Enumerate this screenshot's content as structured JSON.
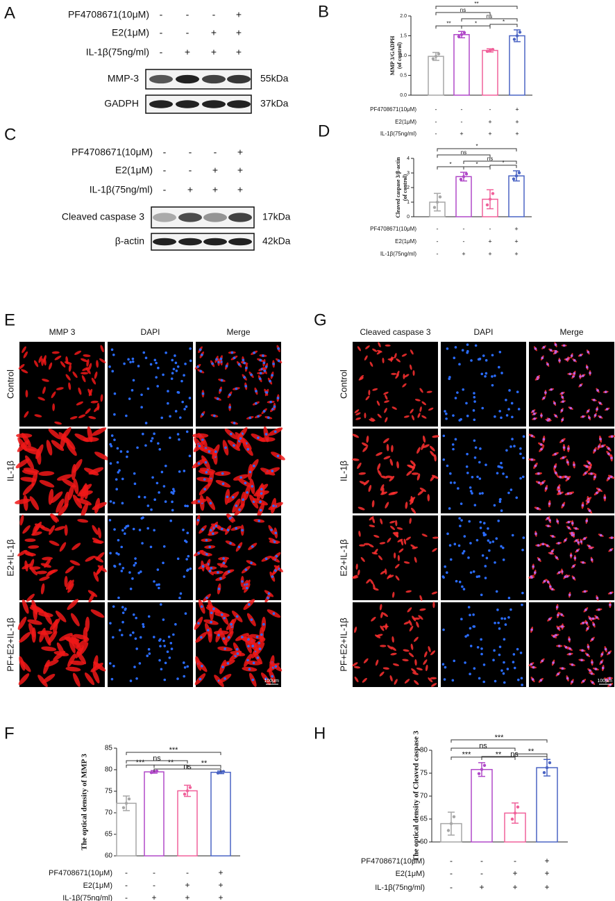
{
  "blots": [
    {
      "panel": "A",
      "treatments": [
        {
          "label": "PF4708671(10μM)",
          "signs": [
            "-",
            "-",
            "-",
            "+"
          ]
        },
        {
          "label": "E2(1μM)",
          "signs": [
            "-",
            "-",
            "+",
            "+"
          ]
        },
        {
          "label": "IL-1β(75ng/ml)",
          "signs": [
            "-",
            "+",
            "+",
            "+"
          ]
        }
      ],
      "bands": [
        {
          "label": "MMP-3",
          "size": "55kDa"
        },
        {
          "label": "GADPH",
          "size": "37kDa"
        }
      ]
    },
    {
      "panel": "C",
      "treatments": [
        {
          "label": "PF4708671(10μM)",
          "signs": [
            "-",
            "-",
            "-",
            "+"
          ]
        },
        {
          "label": "E2(1μM)",
          "signs": [
            "-",
            "-",
            "+",
            "+"
          ]
        },
        {
          "label": "IL-1β(75ng/ml)",
          "signs": [
            "-",
            "+",
            "+",
            "+"
          ]
        }
      ],
      "bands": [
        {
          "label": "Cleaved caspase 3",
          "size": "17kDa"
        },
        {
          "label": "β-actin",
          "size": "42kDa"
        }
      ]
    }
  ],
  "micrographs": [
    {
      "panel": "E",
      "columns": [
        "MMP 3",
        "DAPI",
        "Merge"
      ],
      "rows": [
        "Control",
        "IL-1β",
        "E2+IL-1β",
        "PF+E2+IL-1β"
      ],
      "scale": "100μm"
    },
    {
      "panel": "G",
      "columns": [
        "Cleaved caspase 3",
        "DAPI",
        "Merge"
      ],
      "rows": [
        "Control",
        "IL-1β",
        "E2+IL-1β",
        "PF+E2+IL-1β"
      ],
      "scale": "100μm"
    }
  ],
  "chart_data": [
    {
      "type": "bar",
      "panel": "B",
      "ylabel": [
        "MMP 3/GADPH",
        "(of control)"
      ],
      "categories": [
        null,
        null,
        null,
        null
      ],
      "values": [
        0.98,
        1.53,
        1.13,
        1.5
      ],
      "errors": [
        0.1,
        0.08,
        0.04,
        0.15
      ],
      "colors": [
        "#a6a6a6",
        "#b048c8",
        "#f0609a",
        "#4a64c4"
      ],
      "ylim": [
        0,
        2
      ],
      "yticks": [
        {
          "value": 0,
          "label": "0.0"
        },
        {
          "value": 0.5,
          "label": "0.5"
        },
        {
          "value": 1,
          "label": "1.0"
        },
        {
          "value": 1.5,
          "label": "1.5"
        },
        {
          "value": 2,
          "label": "2.0"
        }
      ],
      "brackets": [
        {
          "pair": [
            0,
            3
          ],
          "label": "**"
        },
        {
          "pair": [
            0,
            2
          ],
          "label": "ns"
        },
        {
          "pair": [
            1,
            3
          ],
          "label": "ns"
        },
        {
          "pair": [
            0,
            1
          ],
          "label": "**"
        },
        {
          "pair": [
            1,
            2
          ],
          "label": "*"
        },
        {
          "pair": [
            2,
            3
          ],
          "label": "*"
        }
      ],
      "treatments": [
        {
          "label": "PF4708671(10μM)",
          "signs": [
            "-",
            "-",
            "-",
            "+"
          ]
        },
        {
          "label": "E2(1μM)",
          "signs": [
            "-",
            "-",
            "+",
            "+"
          ]
        },
        {
          "label": "IL-1β(75ng/ml)",
          "signs": [
            "-",
            "+",
            "+",
            "+"
          ]
        }
      ]
    },
    {
      "type": "bar",
      "panel": "D",
      "ylabel": [
        "Cleaved caspase 3/β-actin",
        "(of control)"
      ],
      "categories": [
        null,
        null,
        null,
        null
      ],
      "values": [
        1.0,
        2.75,
        1.2,
        2.8
      ],
      "errors": [
        0.6,
        0.3,
        0.65,
        0.35
      ],
      "colors": [
        "#a6a6a6",
        "#b048c8",
        "#f0609a",
        "#4a64c4"
      ],
      "ylim": [
        0,
        4
      ],
      "yticks": [
        0,
        1,
        2,
        3,
        4
      ],
      "brackets": [
        {
          "pair": [
            0,
            3
          ],
          "label": "*"
        },
        {
          "pair": [
            0,
            2
          ],
          "label": "ns"
        },
        {
          "pair": [
            1,
            3
          ],
          "label": "ns"
        },
        {
          "pair": [
            0,
            1
          ],
          "label": "*"
        },
        {
          "pair": [
            1,
            2
          ],
          "label": "*"
        },
        {
          "pair": [
            2,
            3
          ],
          "label": "*"
        }
      ],
      "treatments": [
        {
          "label": "PF4708671(10μM)",
          "signs": [
            "-",
            "-",
            "-",
            "+"
          ]
        },
        {
          "label": "E2(1μM)",
          "signs": [
            "-",
            "-",
            "+",
            "+"
          ]
        },
        {
          "label": "IL-1β(75ng/ml)",
          "signs": [
            "-",
            "+",
            "+",
            "+"
          ]
        }
      ]
    },
    {
      "type": "bar",
      "panel": "F",
      "ylabel": [
        "The optical density of MMP 3"
      ],
      "categories": [
        null,
        null,
        null,
        null
      ],
      "values": [
        72.2,
        79.5,
        75.1,
        79.4
      ],
      "errors": [
        1.7,
        0.3,
        1.3,
        0.3
      ],
      "colors": [
        "#a6a6a6",
        "#b048c8",
        "#f0609a",
        "#4a64c4"
      ],
      "ylim": [
        60,
        85
      ],
      "yticks": [
        60,
        65,
        70,
        75,
        80,
        85
      ],
      "brackets": [
        {
          "pair": [
            0,
            3
          ],
          "label": "***"
        },
        {
          "pair": [
            0,
            2
          ],
          "label": "ns"
        },
        {
          "pair": [
            1,
            3
          ],
          "label": "ns"
        },
        {
          "pair": [
            0,
            1
          ],
          "label": "***"
        },
        {
          "pair": [
            1,
            2
          ],
          "label": "**"
        },
        {
          "pair": [
            2,
            3
          ],
          "label": "**"
        }
      ],
      "treatments": [
        {
          "label": "PF4708671(10μM)",
          "signs": [
            "-",
            "-",
            "-",
            "+"
          ]
        },
        {
          "label": "E2(1μM)",
          "signs": [
            "-",
            "-",
            "+",
            "+"
          ]
        },
        {
          "label": "IL-1β(75ng/ml)",
          "signs": [
            "-",
            "+",
            "+",
            "+"
          ]
        }
      ]
    },
    {
      "type": "bar",
      "panel": "H",
      "ylabel": [
        "The optical density of Cleaved caspase 3"
      ],
      "categories": [
        null,
        null,
        null,
        null
      ],
      "values": [
        64,
        75.8,
        66.3,
        76.2
      ],
      "errors": [
        2.5,
        1.5,
        2.2,
        1.8
      ],
      "colors": [
        "#a6a6a6",
        "#b048c8",
        "#f0609a",
        "#4a64c4"
      ],
      "ylim": [
        60,
        80
      ],
      "yticks": [
        60,
        65,
        70,
        75,
        80
      ],
      "brackets": [
        {
          "pair": [
            0,
            3
          ],
          "label": "***"
        },
        {
          "pair": [
            0,
            2
          ],
          "label": "ns"
        },
        {
          "pair": [
            1,
            3
          ],
          "label": "ns"
        },
        {
          "pair": [
            0,
            1
          ],
          "label": "***"
        },
        {
          "pair": [
            1,
            2
          ],
          "label": "**"
        },
        {
          "pair": [
            2,
            3
          ],
          "label": "**"
        }
      ],
      "treatments": [
        {
          "label": "PF4708671(10μM)",
          "signs": [
            "-",
            "-",
            "-",
            "+"
          ]
        },
        {
          "label": "E2(1μM)",
          "signs": [
            "-",
            "-",
            "+",
            "+"
          ]
        },
        {
          "label": "IL-1β(75ng/ml)",
          "signs": [
            "-",
            "+",
            "+",
            "+"
          ]
        }
      ]
    }
  ]
}
